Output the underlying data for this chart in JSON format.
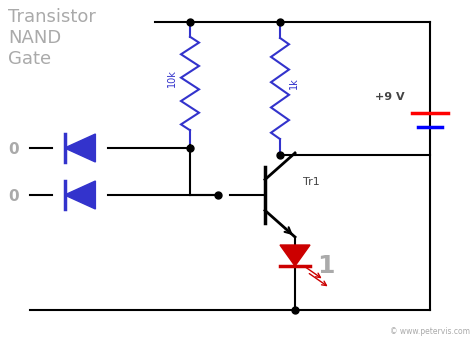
{
  "title": "Transistor\nNAND\nGate",
  "title_color": "#888888",
  "bg_color": "#ffffff",
  "wire_color": "#000000",
  "blue_color": "#3333cc",
  "red_color": "#cc0000",
  "gray_color": "#aaaaaa",
  "dark_color": "#444444",
  "figsize": [
    4.74,
    3.42
  ],
  "dpi": 100,
  "label_9v": "+9 V",
  "label_tr1": "Tr1",
  "label_10k": "10k",
  "label_1k": "1k",
  "label_out": "1",
  "label_in1": "0",
  "label_in2": "0",
  "watermark": "© www.petervis.com"
}
